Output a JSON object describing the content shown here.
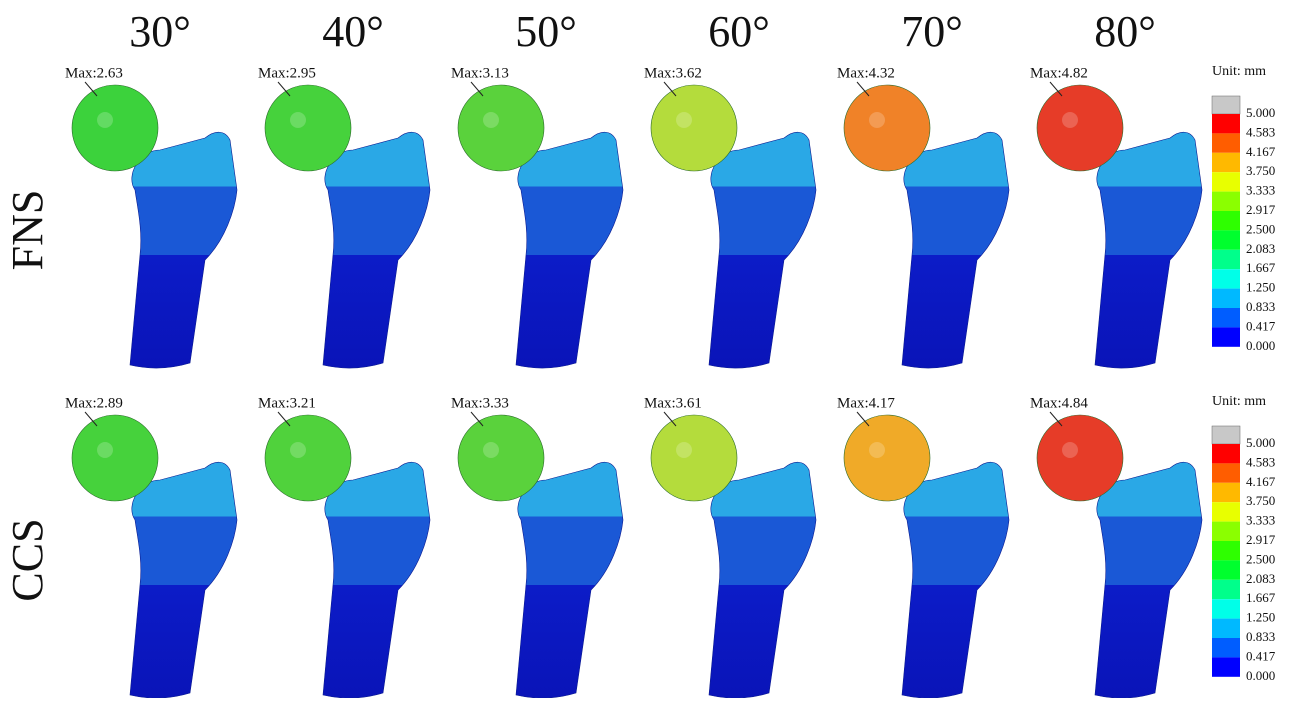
{
  "columns": [
    "30°",
    "40°",
    "50°",
    "60°",
    "70°",
    "80°"
  ],
  "rows": [
    {
      "label": "FNS",
      "cells": [
        {
          "max_label": "Max:2.63",
          "color": "#3cd23c"
        },
        {
          "max_label": "Max:2.95",
          "color": "#46d23c"
        },
        {
          "max_label": "Max:3.13",
          "color": "#5ad23c"
        },
        {
          "max_label": "Max:3.62",
          "color": "#b4dc3c"
        },
        {
          "max_label": "Max:4.32",
          "color": "#f08228"
        },
        {
          "max_label": "Max:4.82",
          "color": "#e63c28"
        }
      ]
    },
    {
      "label": "CCS",
      "cells": [
        {
          "max_label": "Max:2.89",
          "color": "#46d23c"
        },
        {
          "max_label": "Max:3.21",
          "color": "#50d23c"
        },
        {
          "max_label": "Max:3.33",
          "color": "#5ad23c"
        },
        {
          "max_label": "Max:3.61",
          "color": "#b4dc3c"
        },
        {
          "max_label": "Max:4.17",
          "color": "#f0aa28"
        },
        {
          "max_label": "Max:4.84",
          "color": "#e63c28"
        }
      ]
    }
  ],
  "legend": {
    "unit": "Unit: mm",
    "labels": [
      "5.000",
      "4.583",
      "4.167",
      "3.750",
      "3.333",
      "2.917",
      "2.500",
      "2.083",
      "1.667",
      "1.250",
      "0.833",
      "0.417",
      "0.000"
    ],
    "colors": [
      "#ff0000",
      "#ff5d00",
      "#ffb900",
      "#e8ff00",
      "#8bff00",
      "#2eff00",
      "#00ff2e",
      "#00ff8b",
      "#00ffe8",
      "#00b9ff",
      "#005dff",
      "#0000ff"
    ],
    "cap_color": "#c8c8c8"
  }
}
